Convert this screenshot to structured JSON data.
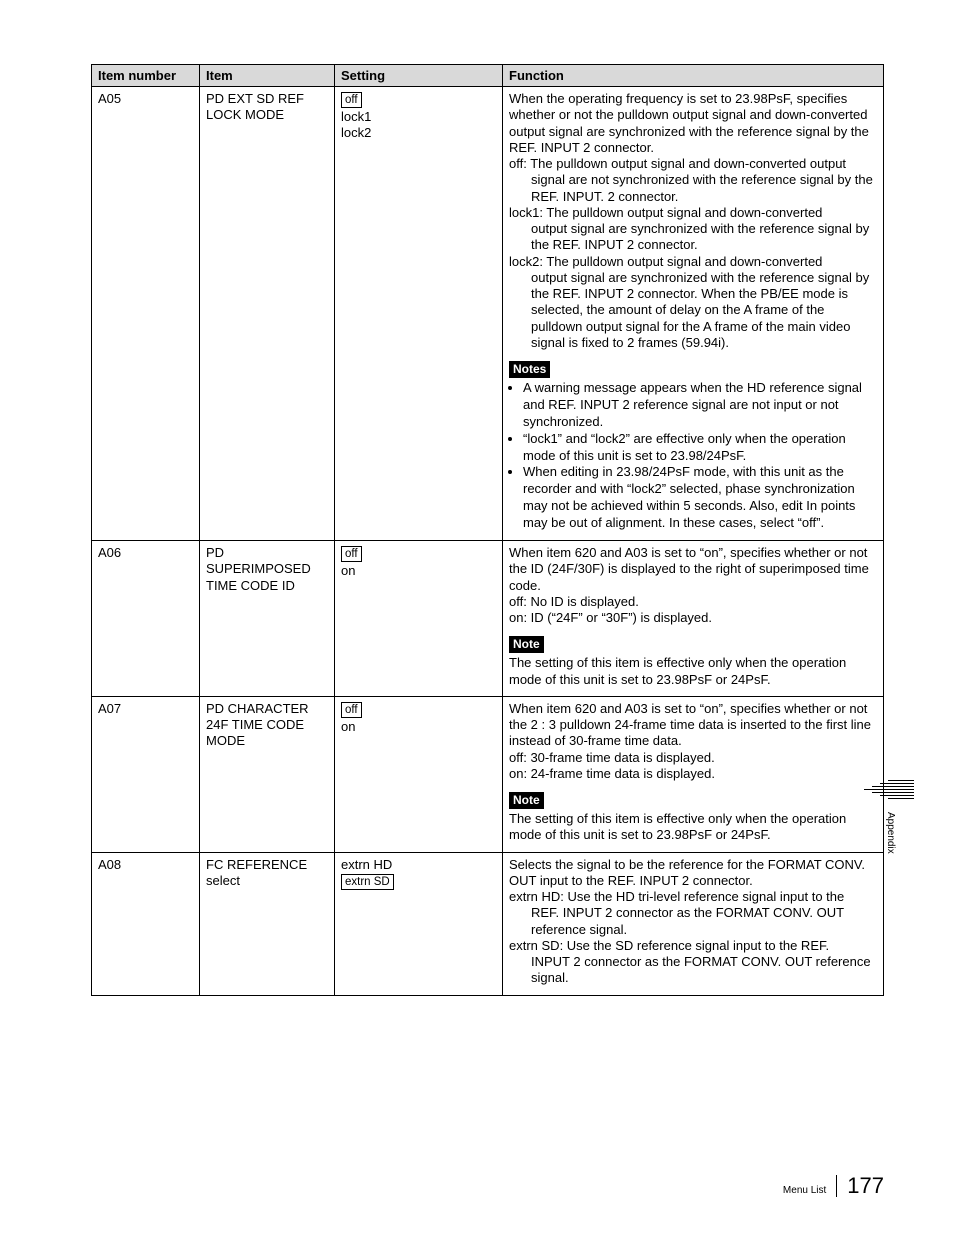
{
  "headers": {
    "col1": "Item number",
    "col2": "Item",
    "col3": "Setting",
    "col4": "Function"
  },
  "rows": [
    {
      "num": "A05",
      "item": "PD EXT SD REF LOCK MODE",
      "settings": [
        {
          "text": "off",
          "boxed": true
        },
        {
          "text": "lock1",
          "boxed": false
        },
        {
          "text": "lock2",
          "boxed": false
        }
      ],
      "function_main": [
        "When the operating frequency is set to 23.98PsF, specifies whether or not the pulldown output signal and down-converted output signal are synchronized with the reference signal by the REF. INPUT 2 connector.",
        "off: The pulldown output signal and down-converted output",
        "SUB:signal are not synchronized with the reference signal by the REF. INPUT. 2 connector.",
        "lock1: The pulldown output signal and down-converted",
        "SUB:output signal are synchronized with the reference signal by the REF. INPUT 2 connector.",
        "lock2: The pulldown output signal and down-converted",
        "SUB:output signal are synchronized with the reference signal by the REF. INPUT 2 connector. When the PB/EE mode is selected, the amount of delay on the A frame of the pulldown output signal for the A frame of the main video signal is fixed to 2 frames (59.94i)."
      ],
      "note_label": "Notes",
      "notes_list": [
        "A warning message appears when the HD reference signal and REF. INPUT 2 reference signal are not input or not synchronized.",
        "“lock1” and “lock2” are effective only when the operation mode of this unit is set to 23.98/24PsF.",
        "When editing in 23.98/24PsF mode, with this unit as the recorder and with “lock2” selected, phase synchronization may not be achieved within 5 seconds. Also, edit In points may be out of alignment. In these cases, select “off”."
      ]
    },
    {
      "num": "A06",
      "item": "PD SUPERIMPOSED TIME CODE ID",
      "settings": [
        {
          "text": "off",
          "boxed": true
        },
        {
          "text": "on",
          "boxed": false
        }
      ],
      "function_main": [
        "When item 620 and A03 is set to “on”, specifies whether or not the ID (24F/30F) is displayed to the right of superimposed time code.",
        "off:  No ID is displayed.",
        "on:  ID (“24F” or “30F”) is displayed."
      ],
      "note_label": "Note",
      "note_para": "The setting of this item is effective only when the operation mode of this unit is set to 23.98PsF or 24PsF."
    },
    {
      "num": "A07",
      "item": "PD CHARACTER 24F TIME CODE MODE",
      "settings": [
        {
          "text": "off",
          "boxed": true
        },
        {
          "text": "on",
          "boxed": false
        }
      ],
      "function_main": [
        "When item 620 and A03 is set to “on”, specifies whether or not the 2 : 3 pulldown 24-frame time data is inserted to the first line instead of 30-frame time data.",
        "off:  30-frame time data is displayed.",
        "on:  24-frame time data is displayed."
      ],
      "note_label": "Note",
      "note_para": "The setting of this item is effective only when the operation mode of this unit is set to 23.98PsF or 24PsF."
    },
    {
      "num": "A08",
      "item": "FC REFERENCE select",
      "settings": [
        {
          "text": "extrn HD",
          "boxed": false
        },
        {
          "text": "extrn SD",
          "boxed": true
        }
      ],
      "function_main": [
        "Selects the signal to be the reference for the FORMAT CONV. OUT input to the REF. INPUT 2 connector.",
        "extrn HD: Use the HD tri-level reference signal input to the",
        "SUB:REF. INPUT 2 connector as the FORMAT CONV. OUT reference signal.",
        "extrn SD: Use the SD reference signal input to the REF.",
        "SUB:INPUT 2 connector as the FORMAT CONV. OUT reference signal."
      ]
    }
  ],
  "sidetab": "Appendix",
  "footer": {
    "section": "Menu List",
    "page": "177"
  }
}
